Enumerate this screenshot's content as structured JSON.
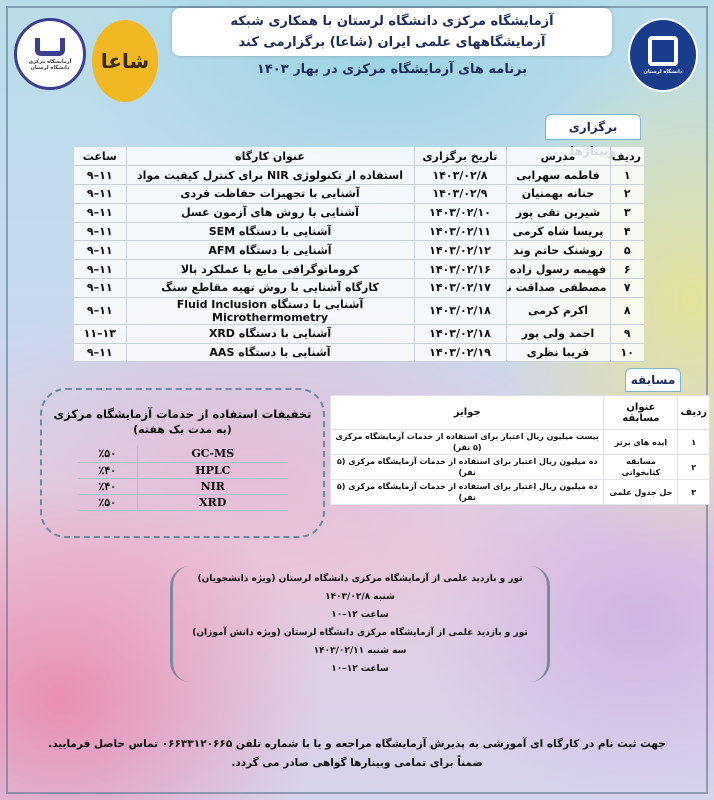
{
  "header": {
    "title_line1": "آزمایشگاه مرکزی دانشگاه لرستان با همکاری شبکه",
    "title_line2": "آزمایشگاههای علمی ایران (شاعا) برگزارمی کند",
    "subtitle": "برنامه های آزمایشگاه مرکزی در بهار ۱۴۰۳",
    "logo_left_text": "آزمایشگاه مرکزی دانشگاه لرستان",
    "logo_middle_text": "شاعا",
    "logo_right_text": "دانشگاه لرستان"
  },
  "webinars": {
    "tab_label": "برگزاری وبینارها",
    "columns": [
      "ردیف",
      "مدرس",
      "تاریخ برگزاری",
      "عنوان کارگاه",
      "ساعت"
    ],
    "rows": [
      [
        "۱",
        "فاطمه سهرابی",
        "۱۴۰۳/۰۲/۸",
        "استفاده از تکنولوژی NIR برای کنترل کیفیت مواد",
        "۱۱–۹"
      ],
      [
        "۲",
        "حنانه بهمنیان",
        "۱۴۰۳/۰۲/۹",
        "آشنایی با تجهیزات حفاظت فردی",
        "۱۱–۹"
      ],
      [
        "۳",
        "شیرین تقی پور",
        "۱۴۰۳/۰۲/۱۰",
        "آشنایی با روش های آزمون عسل",
        "۱۱–۹"
      ],
      [
        "۴",
        "پریسا شاه کرمی",
        "۱۴۰۳/۰۲/۱۱",
        "آشنایی با دستگاه SEM",
        "۱۱–۹"
      ],
      [
        "۵",
        "روشنک حاتم وند",
        "۱۴۰۳/۰۲/۱۲",
        "آشنایی با دستگاه AFM",
        "۱۱–۹"
      ],
      [
        "۶",
        "فهیمه رسول زاده",
        "۱۴۰۳/۰۲/۱۶",
        "کروماتوگرافی مایع با عملکرد بالا",
        "۱۱–۹"
      ],
      [
        "۷",
        "مصطفی صداقت نیا",
        "۱۴۰۳/۰۲/۱۷",
        "کارگاه آشنایی با روش تهیه مقاطع سنگ",
        "۱۱–۹"
      ],
      [
        "۸",
        "اکرم کرمی",
        "۱۴۰۳/۰۲/۱۸",
        "آشنایی با دستگاه Fluid Inclusion Microthermometry",
        "۱۱–۹"
      ],
      [
        "۹",
        "احمد ولی پور",
        "۱۴۰۳/۰۲/۱۸",
        "آشنایی با دستگاه XRD",
        "۱۳–۱۱"
      ],
      [
        "۱۰",
        "فریبا نظری",
        "۱۴۰۳/۰۲/۱۹",
        "آشنایی با دستگاه AAS",
        "۱۱–۹"
      ]
    ]
  },
  "competition": {
    "tab_label": "مسابقه",
    "columns": [
      "ردیف",
      "عنوان مسابقه",
      "جوایز"
    ],
    "rows": [
      [
        "۱",
        "ایده های برتر",
        "بیست میلیون ریال اعتبار برای استفاده از خدمات آزمایشگاه مرکزی (۵ نفر)"
      ],
      [
        "۲",
        "مسابقه کتابخوانی",
        "ده میلیون ریال اعتبار برای استفاده از خدمات آزمایشگاه مرکزی (۵ نفر)"
      ],
      [
        "۳",
        "حل جدول علمی",
        "ده میلیون ریال اعتبار برای استفاده از خدمات آزمایشگاه مرکزی (۵ نفر)"
      ]
    ]
  },
  "discounts": {
    "title": "تخفیفات استفاده از خدمات آزمایشگاه مرکزی",
    "subtitle": "(به مدت یک هفته)",
    "rows": [
      [
        "GC-MS",
        "٪۵۰"
      ],
      [
        "HPLC",
        "٪۴۰"
      ],
      [
        "NIR",
        "٪۴۰"
      ],
      [
        "XRD",
        "٪۵۰"
      ]
    ]
  },
  "tours": {
    "lines": [
      "تور و بازدید علمی از آزمایشگاه مرکزی دانشگاه لرستان (ویژه دانشجویان)",
      "شنبه ۱۴۰۳/۰۲/۸",
      "ساعت ۱۲–۱۰",
      "تور و بازدید علمی از آزمایشگاه مرکزی دانشگاه لرستان (ویژه دانش آموزان)",
      "سه شنبه ۱۴۰۳/۰۲/۱۱",
      "ساعت ۱۲–۱۰"
    ]
  },
  "footer": {
    "line1": "جهت ثبت نام در کارگاه ای آموزشی به پذیرش آزمایشگاه مراجعه و یا با شماره تلفن ۰۶۶۳۳۱۲۰۶۶۵ تماس حاصل فرمایید.",
    "line2": "ضمناً برای تمامی وبینارها گواهی صادر می گردد."
  },
  "colors": {
    "title_navy": "#1e2c5a",
    "logo_gold": "#f2b824",
    "logo_blue": "#1a3c8c"
  }
}
